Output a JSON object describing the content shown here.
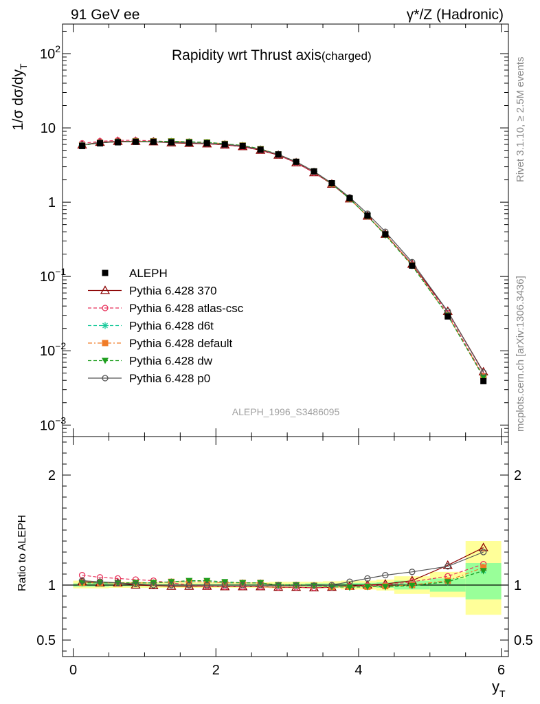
{
  "header": {
    "left": "91 GeV ee",
    "right": "γ*/Z (Hadronic)"
  },
  "side": {
    "rivet": "Rivet 3.1.10, ≥ 2.5M events",
    "mcplots": "mcplots.cern.ch [arXiv:1306.3436]"
  },
  "chart_data": [
    {
      "type": "scatter",
      "title": "Rapidity wrt Thrust axis",
      "title_suffix": "(charged)",
      "ylabel": "1/σ dσ/dy_T",
      "yscale": "log",
      "ylim": [
        0.0007,
        250
      ],
      "xlim": [
        -0.15,
        6.1
      ],
      "y_ticks": [
        "10^-3",
        "10^-2",
        "10^-1",
        "1",
        "10",
        "10^2"
      ],
      "watermark": "ALEPH_1996_S3486095",
      "x": [
        0.125,
        0.375,
        0.625,
        0.875,
        1.125,
        1.375,
        1.625,
        1.875,
        2.125,
        2.375,
        2.625,
        2.875,
        3.125,
        3.375,
        3.625,
        3.875,
        4.125,
        4.375,
        4.75,
        5.25,
        5.75
      ],
      "series": [
        {
          "name": "ALEPH",
          "color": "#000000",
          "marker": "square",
          "dash": "",
          "values": [
            5.7,
            6.2,
            6.4,
            6.5,
            6.5,
            6.4,
            6.3,
            6.2,
            6.0,
            5.7,
            5.1,
            4.4,
            3.5,
            2.6,
            1.8,
            1.13,
            0.66,
            0.37,
            0.14,
            0.029,
            0.0039
          ]
        },
        {
          "name": "Pythia 6.428 370",
          "color": "#8b0000",
          "marker": "triangle",
          "dash": "",
          "values": [
            5.9,
            6.4,
            6.6,
            6.6,
            6.5,
            6.3,
            6.2,
            6.1,
            5.9,
            5.6,
            5.0,
            4.3,
            3.4,
            2.5,
            1.75,
            1.11,
            0.65,
            0.37,
            0.146,
            0.034,
            0.0052
          ]
        },
        {
          "name": "Pythia 6.428 atlas-csc",
          "color": "#e8315b",
          "marker": "circle-open",
          "dash": "5,3",
          "values": [
            6.2,
            6.6,
            6.8,
            6.8,
            6.7,
            6.5,
            6.3,
            6.1,
            5.9,
            5.6,
            5.0,
            4.3,
            3.4,
            2.5,
            1.75,
            1.11,
            0.65,
            0.37,
            0.145,
            0.032,
            0.0046
          ]
        },
        {
          "name": "Pythia 6.428 d6t",
          "color": "#17c99a",
          "marker": "star",
          "dash": "5,3",
          "values": [
            5.8,
            6.3,
            6.5,
            6.6,
            6.6,
            6.6,
            6.5,
            6.4,
            6.1,
            5.8,
            5.2,
            4.4,
            3.5,
            2.6,
            1.77,
            1.11,
            0.65,
            0.36,
            0.14,
            0.03,
            0.0044
          ]
        },
        {
          "name": "Pythia 6.428 default",
          "color": "#f07c28",
          "marker": "square",
          "dash": "6,3,2,3",
          "values": [
            5.8,
            6.3,
            6.5,
            6.6,
            6.6,
            6.6,
            6.5,
            6.4,
            6.1,
            5.8,
            5.2,
            4.4,
            3.5,
            2.6,
            1.77,
            1.11,
            0.65,
            0.37,
            0.142,
            0.03,
            0.0045
          ]
        },
        {
          "name": "Pythia 6.428 dw",
          "color": "#1e9e1e",
          "marker": "triangle-down",
          "dash": "5,3",
          "values": [
            5.8,
            6.3,
            6.5,
            6.6,
            6.6,
            6.6,
            6.5,
            6.4,
            6.1,
            5.8,
            5.2,
            4.4,
            3.5,
            2.6,
            1.77,
            1.11,
            0.65,
            0.36,
            0.14,
            0.03,
            0.0044
          ]
        },
        {
          "name": "Pythia 6.428 p0",
          "color": "#555555",
          "marker": "circle-open",
          "dash": "",
          "values": [
            5.9,
            6.3,
            6.5,
            6.5,
            6.5,
            6.4,
            6.3,
            6.2,
            6.0,
            5.7,
            5.1,
            4.4,
            3.5,
            2.6,
            1.8,
            1.16,
            0.7,
            0.4,
            0.156,
            0.034,
            0.0051
          ]
        }
      ]
    },
    {
      "type": "scatter",
      "ylabel": "Ratio to ALEPH",
      "xlabel": "y_T",
      "ylim": [
        0.35,
        2.35
      ],
      "xlim": [
        -0.15,
        6.1
      ],
      "y_ticks": [
        0.5,
        1,
        2
      ],
      "x_ticks": [
        0,
        2,
        4,
        6
      ],
      "bands": [
        {
          "x0": 0.0,
          "x1": 0.25,
          "yellow": [
            0.97,
            1.04
          ],
          "green": [
            0.985,
            1.015
          ]
        },
        {
          "x0": 0.25,
          "x1": 0.5,
          "yellow": [
            0.97,
            1.03
          ],
          "green": [
            0.985,
            1.015
          ]
        },
        {
          "x0": 0.5,
          "x1": 0.75,
          "yellow": [
            0.975,
            1.03
          ],
          "green": [
            0.99,
            1.01
          ]
        },
        {
          "x0": 0.75,
          "x1": 1.0,
          "yellow": [
            0.975,
            1.03
          ],
          "green": [
            0.99,
            1.01
          ]
        },
        {
          "x0": 1.0,
          "x1": 1.25,
          "yellow": [
            0.975,
            1.025
          ],
          "green": [
            0.99,
            1.01
          ]
        },
        {
          "x0": 1.25,
          "x1": 1.5,
          "yellow": [
            0.975,
            1.025
          ],
          "green": [
            0.99,
            1.01
          ]
        },
        {
          "x0": 1.5,
          "x1": 1.75,
          "yellow": [
            0.975,
            1.025
          ],
          "green": [
            0.99,
            1.01
          ]
        },
        {
          "x0": 1.75,
          "x1": 2.0,
          "yellow": [
            0.975,
            1.025
          ],
          "green": [
            0.99,
            1.01
          ]
        },
        {
          "x0": 2.0,
          "x1": 2.25,
          "yellow": [
            0.975,
            1.025
          ],
          "green": [
            0.99,
            1.01
          ]
        },
        {
          "x0": 2.25,
          "x1": 2.5,
          "yellow": [
            0.975,
            1.025
          ],
          "green": [
            0.99,
            1.01
          ]
        },
        {
          "x0": 2.5,
          "x1": 2.75,
          "yellow": [
            0.975,
            1.025
          ],
          "green": [
            0.99,
            1.01
          ]
        },
        {
          "x0": 2.75,
          "x1": 3.0,
          "yellow": [
            0.97,
            1.03
          ],
          "green": [
            0.99,
            1.01
          ]
        },
        {
          "x0": 3.0,
          "x1": 3.25,
          "yellow": [
            0.97,
            1.03
          ],
          "green": [
            0.99,
            1.01
          ]
        },
        {
          "x0": 3.25,
          "x1": 3.5,
          "yellow": [
            0.97,
            1.03
          ],
          "green": [
            0.985,
            1.015
          ]
        },
        {
          "x0": 3.5,
          "x1": 3.75,
          "yellow": [
            0.97,
            1.035
          ],
          "green": [
            0.985,
            1.015
          ]
        },
        {
          "x0": 3.75,
          "x1": 4.0,
          "yellow": [
            0.96,
            1.04
          ],
          "green": [
            0.98,
            1.02
          ]
        },
        {
          "x0": 4.0,
          "x1": 4.25,
          "yellow": [
            0.96,
            1.04
          ],
          "green": [
            0.98,
            1.02
          ]
        },
        {
          "x0": 4.25,
          "x1": 4.5,
          "yellow": [
            0.95,
            1.05
          ],
          "green": [
            0.975,
            1.025
          ]
        },
        {
          "x0": 4.5,
          "x1": 5.0,
          "yellow": [
            0.92,
            1.08
          ],
          "green": [
            0.96,
            1.04
          ]
        },
        {
          "x0": 5.0,
          "x1": 5.5,
          "yellow": [
            0.89,
            1.12
          ],
          "green": [
            0.94,
            1.06
          ]
        },
        {
          "x0": 5.5,
          "x1": 6.0,
          "yellow": [
            0.73,
            1.4
          ],
          "green": [
            0.87,
            1.2
          ]
        }
      ],
      "x": [
        0.125,
        0.375,
        0.625,
        0.875,
        1.125,
        1.375,
        1.625,
        1.875,
        2.125,
        2.375,
        2.625,
        2.875,
        3.125,
        3.375,
        3.625,
        3.875,
        4.125,
        4.375,
        4.75,
        5.25,
        5.75
      ],
      "series": [
        {
          "name": "ALEPH",
          "color": "#000000",
          "marker": "none",
          "dash": "",
          "values": [
            1,
            1,
            1,
            1,
            1,
            1,
            1,
            1,
            1,
            1,
            1,
            1,
            1,
            1,
            1,
            1,
            1,
            1,
            1,
            1,
            1
          ]
        },
        {
          "name": "Pythia 6.428 370",
          "color": "#8b0000",
          "marker": "triangle",
          "dash": "",
          "values": [
            1.03,
            1.02,
            1.02,
            1.0,
            0.995,
            0.99,
            0.99,
            0.99,
            0.985,
            0.985,
            0.985,
            0.98,
            0.98,
            0.975,
            0.98,
            0.99,
            1.0,
            1.01,
            1.04,
            1.18,
            1.34
          ]
        },
        {
          "name": "Pythia 6.428 atlas-csc",
          "color": "#e8315b",
          "marker": "circle-open",
          "dash": "5,3",
          "values": [
            1.09,
            1.07,
            1.06,
            1.05,
            1.04,
            1.02,
            1.0,
            0.99,
            0.985,
            0.985,
            0.985,
            0.98,
            0.98,
            0.975,
            0.98,
            0.99,
            0.995,
            1.0,
            1.03,
            1.08,
            1.19
          ]
        },
        {
          "name": "Pythia 6.428 d6t",
          "color": "#17c99a",
          "marker": "star",
          "dash": "5,3",
          "values": [
            1.02,
            1.02,
            1.02,
            1.02,
            1.02,
            1.03,
            1.03,
            1.03,
            1.02,
            1.02,
            1.02,
            1.0,
            1.0,
            0.995,
            0.985,
            0.98,
            0.985,
            0.985,
            0.995,
            1.03,
            1.13
          ]
        },
        {
          "name": "Pythia 6.428 default",
          "color": "#f07c28",
          "marker": "square",
          "dash": "6,3,2,3",
          "values": [
            1.02,
            1.02,
            1.02,
            1.02,
            1.02,
            1.03,
            1.03,
            1.03,
            1.02,
            1.02,
            1.02,
            1.0,
            1.0,
            0.995,
            0.985,
            0.985,
            0.985,
            0.99,
            1.0,
            1.04,
            1.16
          ]
        },
        {
          "name": "Pythia 6.428 dw",
          "color": "#1e9e1e",
          "marker": "triangle-down",
          "dash": "5,3",
          "values": [
            1.02,
            1.02,
            1.02,
            1.02,
            1.02,
            1.03,
            1.04,
            1.04,
            1.03,
            1.02,
            1.02,
            1.0,
            1.0,
            0.995,
            0.985,
            0.98,
            0.985,
            0.985,
            0.995,
            1.03,
            1.13
          ]
        },
        {
          "name": "Pythia 6.428 p0",
          "color": "#555555",
          "marker": "circle-open",
          "dash": "",
          "values": [
            1.04,
            1.03,
            1.02,
            1.01,
            1.0,
            1.0,
            1.0,
            1.0,
            1.0,
            1.0,
            1.0,
            0.995,
            0.995,
            0.995,
            1.0,
            1.03,
            1.06,
            1.09,
            1.12,
            1.17,
            1.3
          ]
        }
      ]
    }
  ]
}
